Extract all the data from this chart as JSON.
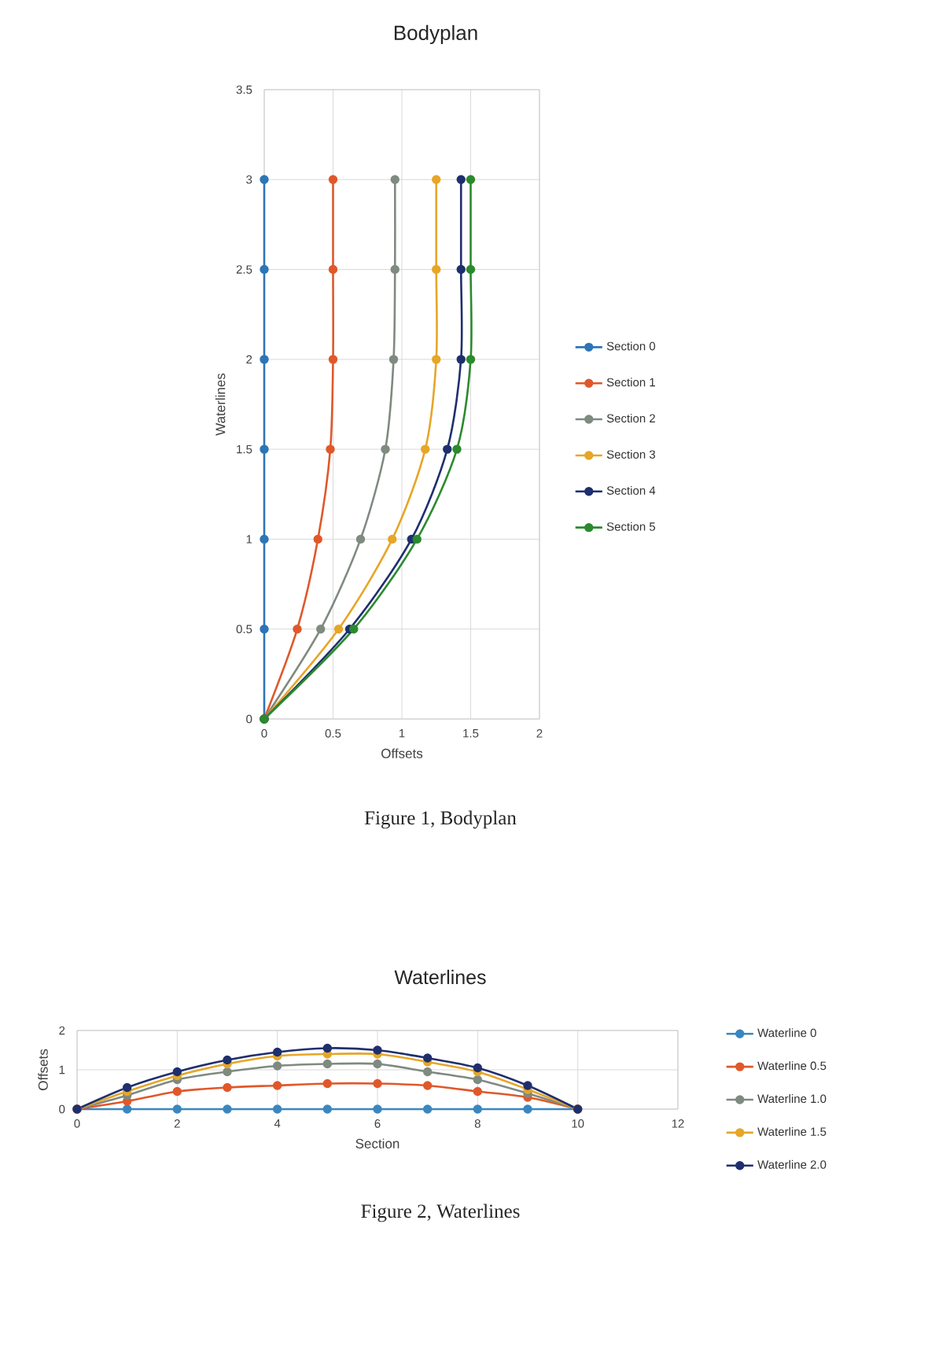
{
  "chart_data": [
    {
      "type": "line",
      "title": "Bodyplan",
      "xlabel": "Offsets",
      "ylabel": "Waterlines",
      "xlim": [
        0,
        2
      ],
      "xticks": [
        0,
        0.5,
        1,
        1.5,
        2
      ],
      "ylim": [
        0,
        3.5
      ],
      "yticks": [
        0,
        0.5,
        1,
        1.5,
        2,
        2.5,
        3,
        3.5
      ],
      "grid": true,
      "legend": "right",
      "marker": "circle",
      "line_style": "solid",
      "annotations": [
        "Figure 1, Bodyplan"
      ],
      "series": [
        {
          "name": "Section 0",
          "color": "#2e75b6",
          "x": [
            0,
            0,
            0,
            0,
            0,
            0,
            0
          ],
          "values": [
            0,
            0.5,
            1,
            1.5,
            2,
            2.5,
            3
          ]
        },
        {
          "name": "Section 1",
          "color": "#e0582a",
          "x": [
            0,
            0.24,
            0.39,
            0.48,
            0.5,
            0.5,
            0.5
          ],
          "values": [
            0,
            0.5,
            1,
            1.5,
            2,
            2.5,
            3
          ]
        },
        {
          "name": "Section 2",
          "color": "#7f8a80",
          "x": [
            0,
            0.41,
            0.7,
            0.88,
            0.94,
            0.95,
            0.95
          ],
          "values": [
            0,
            0.5,
            1,
            1.5,
            2,
            2.5,
            3
          ]
        },
        {
          "name": "Section 3",
          "color": "#e6a628",
          "x": [
            0,
            0.54,
            0.93,
            1.17,
            1.25,
            1.25,
            1.25
          ],
          "values": [
            0,
            0.5,
            1,
            1.5,
            2,
            2.5,
            3
          ]
        },
        {
          "name": "Section 4",
          "color": "#1f2f6e",
          "x": [
            0,
            0.62,
            1.07,
            1.33,
            1.43,
            1.43,
            1.43
          ],
          "values": [
            0,
            0.5,
            1,
            1.5,
            2,
            2.5,
            3
          ]
        },
        {
          "name": "Section 5",
          "color": "#2b8a2e",
          "x": [
            0,
            0.65,
            1.11,
            1.4,
            1.5,
            1.5,
            1.5
          ],
          "values": [
            0,
            0.5,
            1,
            1.5,
            2,
            2.5,
            3
          ]
        }
      ]
    },
    {
      "type": "line",
      "title": "Waterlines",
      "xlabel": "Section",
      "ylabel": "Offsets",
      "xlim": [
        0,
        12
      ],
      "xticks": [
        0,
        2,
        4,
        6,
        8,
        10,
        12
      ],
      "ylim": [
        0,
        2
      ],
      "yticks": [
        0,
        1,
        2
      ],
      "grid": true,
      "legend": "right",
      "marker": "circle",
      "line_style": "solid",
      "annotations": [
        "Figure 2, Waterlines"
      ],
      "x": [
        0,
        1,
        2,
        3,
        4,
        5,
        6,
        7,
        8,
        9,
        10
      ],
      "series": [
        {
          "name": "Waterline 0",
          "color": "#3a87c0",
          "values": [
            0,
            0,
            0,
            0,
            0,
            0,
            0,
            0,
            0,
            0,
            0
          ]
        },
        {
          "name": "Waterline 0.5",
          "color": "#e0582a",
          "values": [
            0,
            0.2,
            0.45,
            0.55,
            0.6,
            0.65,
            0.65,
            0.6,
            0.45,
            0.3,
            0
          ]
        },
        {
          "name": "Waterline 1.0",
          "color": "#7f8a80",
          "values": [
            0,
            0.35,
            0.75,
            0.95,
            1.1,
            1.15,
            1.15,
            0.95,
            0.75,
            0.4,
            0
          ]
        },
        {
          "name": "Waterline 1.5",
          "color": "#e6a628",
          "values": [
            0,
            0.45,
            0.85,
            1.15,
            1.35,
            1.4,
            1.4,
            1.2,
            0.95,
            0.5,
            0
          ]
        },
        {
          "name": "Waterline 2.0",
          "color": "#1f2f6e",
          "values": [
            0,
            0.55,
            0.95,
            1.25,
            1.45,
            1.55,
            1.5,
            1.3,
            1.05,
            0.6,
            0
          ]
        }
      ]
    }
  ]
}
